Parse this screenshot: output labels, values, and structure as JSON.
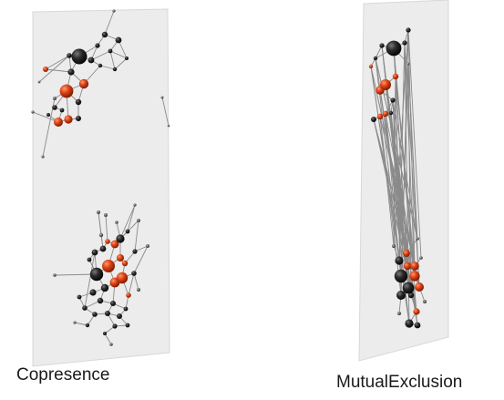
{
  "panels": [
    {
      "label": "Copresence"
    },
    {
      "label": "MutualExclusion"
    }
  ],
  "colors": {
    "plane_fill": "#ececec",
    "plane_edge": "#d4d4d4",
    "edge": "#8a8a8a",
    "node_dark": "#1c1c1c",
    "node_red": "#d8401a",
    "node_grey": "#6e6e6e"
  }
}
